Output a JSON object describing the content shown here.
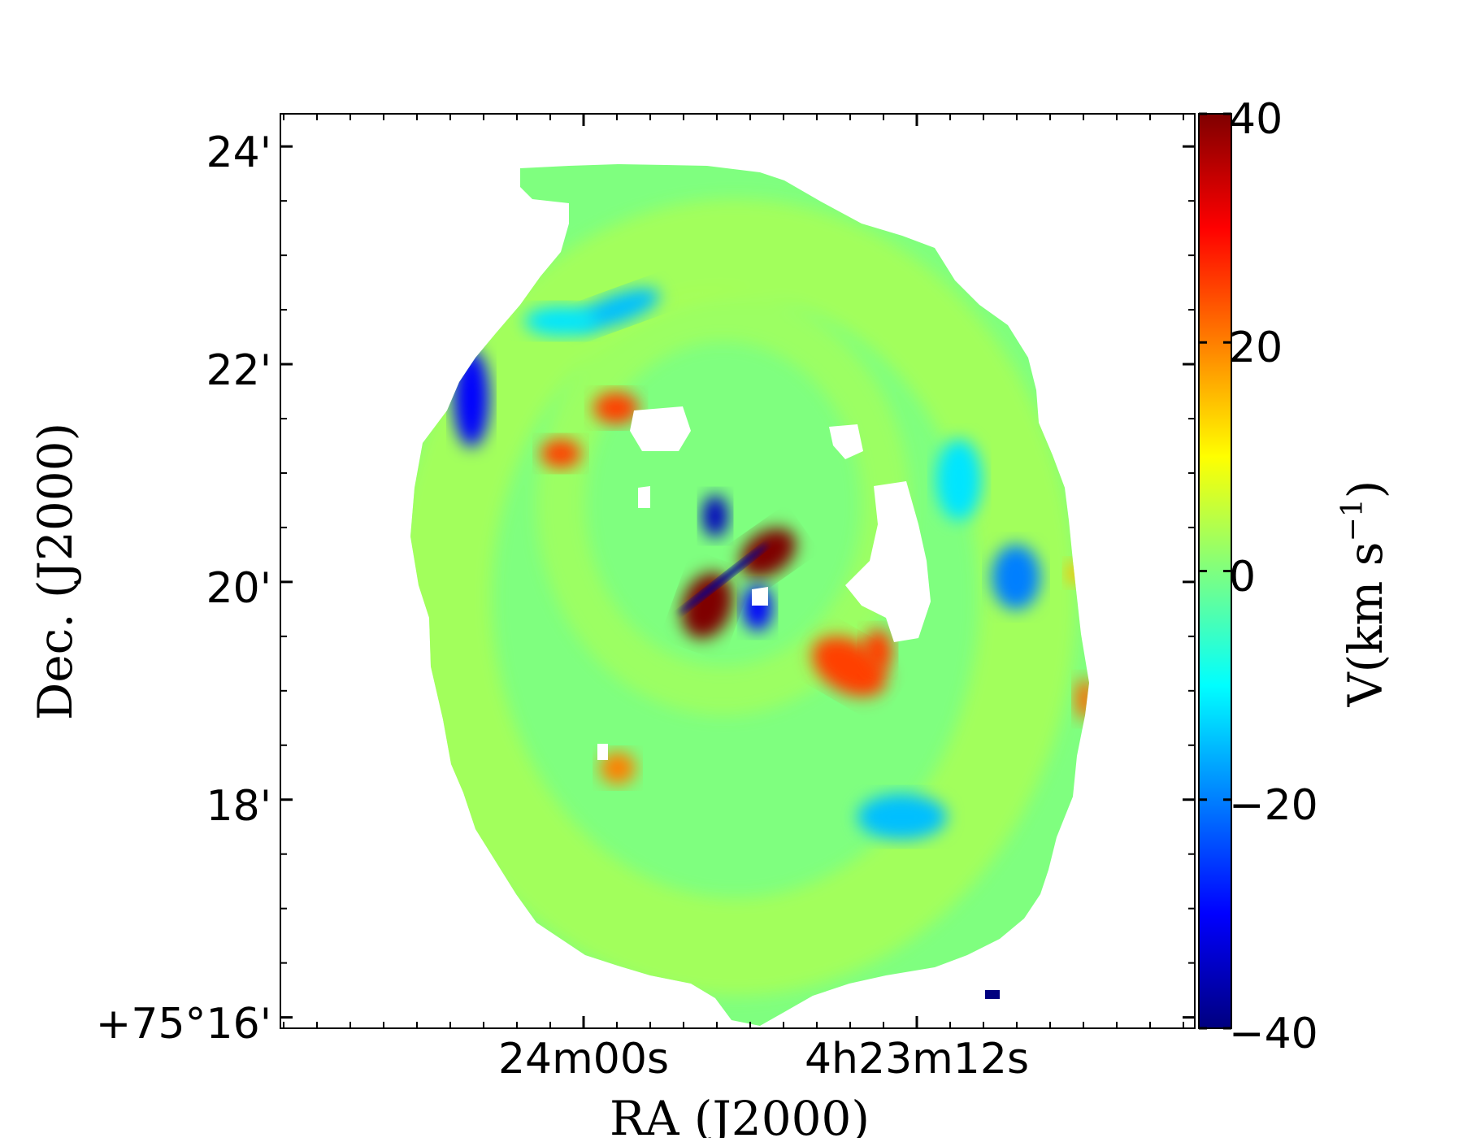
{
  "chart_data": {
    "type": "heatmap",
    "title": "",
    "xlabel": "RA (J2000)",
    "ylabel": "Dec. (J2000)",
    "x_tick_labels": [
      "24m00s",
      "4h23m12s"
    ],
    "y_tick_labels": [
      "+75°16'",
      "18'",
      "20'",
      "22'",
      "24'"
    ],
    "y_tick_values_arcmin": [
      16,
      18,
      20,
      22,
      24
    ],
    "ylim_arcmin": [
      15.9,
      24.3
    ],
    "colorbar": {
      "label_main": "V(km s",
      "label_exp": "−1",
      "label_close": ")",
      "range": [
        -40,
        40
      ],
      "tick_values": [
        40,
        20,
        0,
        -20,
        -40
      ],
      "tick_labels": [
        "40",
        "20",
        "0",
        "−20",
        "−40"
      ],
      "colormap": "jet",
      "stops": [
        "#00007f",
        "#0000ff",
        "#007fff",
        "#00ffff",
        "#7fff7f",
        "#ffff00",
        "#ff7f00",
        "#ff0000",
        "#7f0000"
      ]
    },
    "field": {
      "background_velocity": 0,
      "ring_velocity": 5,
      "features": [
        {
          "velocity": 40
        },
        {
          "velocity": 40
        },
        {
          "velocity": -35
        },
        {
          "velocity": -30
        },
        {
          "velocity": -30
        },
        {
          "velocity": 25
        },
        {
          "velocity": 25
        },
        {
          "velocity": 25
        },
        {
          "velocity": 25
        },
        {
          "velocity": 20
        },
        {
          "velocity": -15
        },
        {
          "velocity": -15
        },
        {
          "velocity": -12
        },
        {
          "velocity": -12
        },
        {
          "velocity": -20
        },
        {
          "velocity": 15
        },
        {
          "velocity": 22
        },
        {
          "velocity": -38
        }
      ]
    },
    "grid": false,
    "legend": "colorbar-right"
  }
}
